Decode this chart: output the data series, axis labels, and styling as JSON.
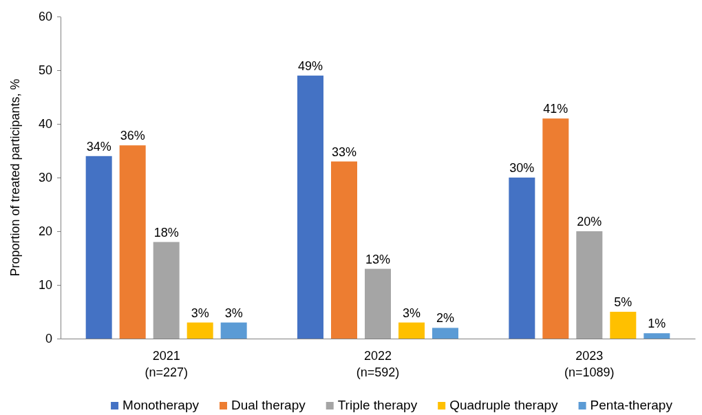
{
  "chart_data": {
    "type": "bar",
    "ylabel": "Proportion of treated participants, %",
    "categories": [
      "2021\n(n=227)",
      "2022\n(n=592)",
      "2023\n(n=1089)"
    ],
    "series": [
      {
        "name": "Monotherapy",
        "color": "#4472c4",
        "values": [
          34,
          49,
          30
        ],
        "value_labels": [
          "34%",
          "49%",
          "30%"
        ]
      },
      {
        "name": "Dual therapy",
        "color": "#ed7d31",
        "values": [
          36,
          33,
          41
        ],
        "value_labels": [
          "36%",
          "33%",
          "41%"
        ]
      },
      {
        "name": "Triple therapy",
        "color": "#a5a5a5",
        "values": [
          18,
          13,
          20
        ],
        "value_labels": [
          "18%",
          "13%",
          "20%"
        ]
      },
      {
        "name": "Quadruple therapy",
        "color": "#ffc000",
        "values": [
          3,
          3,
          5
        ],
        "value_labels": [
          "3%",
          "3%",
          "5%"
        ]
      },
      {
        "name": "Penta-therapy",
        "color": "#5b9bd5",
        "values": [
          3,
          2,
          1
        ],
        "value_labels": [
          "3%",
          "2%",
          "1%"
        ]
      }
    ],
    "ylim": [
      0,
      60
    ],
    "yticks": [
      0,
      10,
      20,
      30,
      40,
      50,
      60
    ],
    "grid": false,
    "legend": "bottom"
  }
}
